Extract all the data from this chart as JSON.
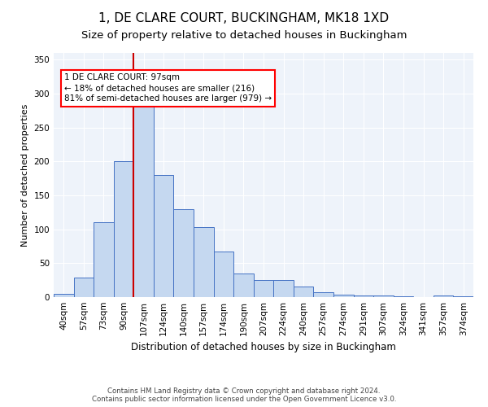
{
  "title": "1, DE CLARE COURT, BUCKINGHAM, MK18 1XD",
  "subtitle": "Size of property relative to detached houses in Buckingham",
  "xlabel": "Distribution of detached houses by size in Buckingham",
  "ylabel": "Number of detached properties",
  "footer_line1": "Contains HM Land Registry data © Crown copyright and database right 2024.",
  "footer_line2": "Contains public sector information licensed under the Open Government Licence v3.0.",
  "categories": [
    "40sqm",
    "57sqm",
    "73sqm",
    "90sqm",
    "107sqm",
    "124sqm",
    "140sqm",
    "157sqm",
    "174sqm",
    "190sqm",
    "207sqm",
    "224sqm",
    "240sqm",
    "257sqm",
    "274sqm",
    "291sqm",
    "307sqm",
    "324sqm",
    "341sqm",
    "357sqm",
    "374sqm"
  ],
  "values": [
    5,
    29,
    110,
    200,
    293,
    180,
    130,
    103,
    67,
    35,
    25,
    25,
    16,
    7,
    4,
    3,
    3,
    1,
    0,
    2,
    1
  ],
  "bar_color": "#c5d8f0",
  "bar_edge_color": "#4472c4",
  "background_color": "#eef3fa",
  "ylim": [
    0,
    360
  ],
  "yticks": [
    0,
    50,
    100,
    150,
    200,
    250,
    300,
    350
  ],
  "property_line_x": 3.5,
  "property_line_color": "#cc0000",
  "annotation_text_line1": "1 DE CLARE COURT: 97sqm",
  "annotation_text_line2": "← 18% of detached houses are smaller (216)",
  "annotation_text_line3": "81% of semi-detached houses are larger (979) →",
  "title_fontsize": 11,
  "subtitle_fontsize": 9.5,
  "tick_fontsize": 7.5,
  "ylabel_fontsize": 8,
  "xlabel_fontsize": 8.5,
  "annotation_fontsize": 7.5
}
